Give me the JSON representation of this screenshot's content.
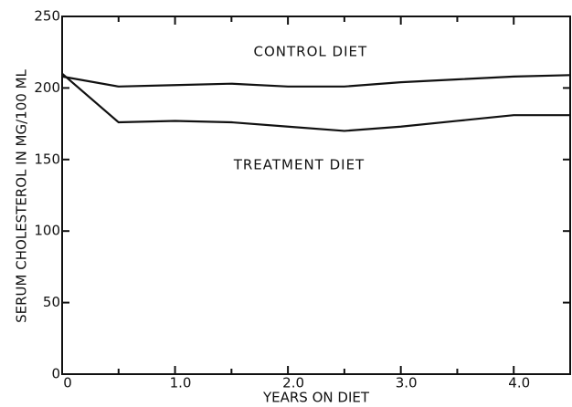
{
  "chart_data": {
    "type": "line",
    "xlabel": "YEARS ON DIET",
    "ylabel": "SERUM CHOLESTEROL IN MG/100 ML",
    "annotations": [
      {
        "text": "CONTROL DIET",
        "x": 2.2,
        "y": 225
      },
      {
        "text": "TREATMENT DIET",
        "x": 2.1,
        "y": 146
      }
    ],
    "x": [
      0,
      0.5,
      1,
      1.5,
      2,
      2.5,
      3,
      3.5,
      4,
      4.5
    ],
    "series": [
      {
        "name": "CONTROL DIET",
        "color": "#111111",
        "values": [
          208,
          201,
          202,
          203,
          201,
          201,
          204,
          206,
          208,
          209
        ]
      },
      {
        "name": "TREATMENT DIET",
        "color": "#111111",
        "values": [
          210,
          176,
          177,
          176,
          173,
          170,
          173,
          177,
          181,
          181
        ]
      }
    ],
    "xlim": [
      0,
      4.5
    ],
    "ylim": [
      0,
      250
    ],
    "xticks": [
      0,
      {
        "value": 1,
        "label": "1.0"
      },
      {
        "value": 2,
        "label": "2.0"
      },
      {
        "value": 3,
        "label": "3.0"
      },
      {
        "value": 4,
        "label": "4.0"
      }
    ],
    "xminor_ticks": [
      0.5,
      1.5,
      2.5,
      3.5
    ],
    "yticks": [
      0,
      50,
      100,
      150,
      200,
      250
    ]
  }
}
